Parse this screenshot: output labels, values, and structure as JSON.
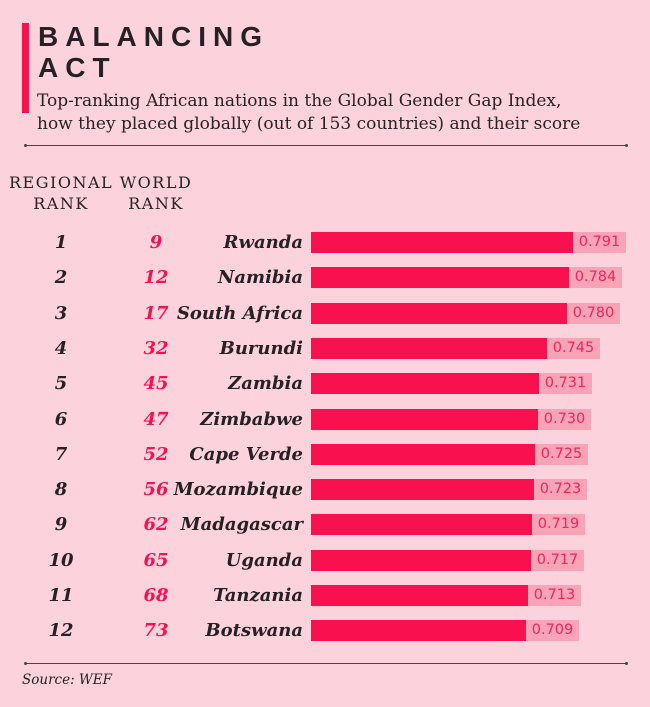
{
  "colors": {
    "background": "#fcd3dd",
    "crimson": "#f8104f",
    "bar_fill": "#f8104f",
    "bar_chip": "#f9a3b6",
    "value_text": "#f3255b",
    "dark_text": "#272125",
    "divider": "#4b4347"
  },
  "header": {
    "title": "BALANCING\nACT",
    "subtitle": "Top-ranking African nations in the Global Gender Gap Index,\nhow they placed globally (out of 153 countries) and their score"
  },
  "table": {
    "columns": [
      {
        "id": "regional_rank",
        "label": "REGIONAL\nRANK"
      },
      {
        "id": "world_rank",
        "label": "WORLD\nRANK"
      }
    ]
  },
  "chart_data": {
    "type": "bar",
    "orientation": "horizontal",
    "title": "BALANCING ACT",
    "subtitle": "Top-ranking African nations in the Global Gender Gap Index, how they placed globally (out of 153 countries) and their score",
    "xlim": [
      0.335,
      0.881
    ],
    "categories": [
      "Rwanda",
      "Namibia",
      "South Africa",
      "Burundi",
      "Zambia",
      "Zimbabwe",
      "Cape Verde",
      "Mozambique",
      "Madagascar",
      "Uganda",
      "Tanzania",
      "Botswana"
    ],
    "values": [
      0.791,
      0.784,
      0.78,
      0.745,
      0.731,
      0.73,
      0.725,
      0.723,
      0.719,
      0.717,
      0.713,
      0.709
    ],
    "rows": [
      {
        "regional_rank": "1",
        "world_rank": "9",
        "country": "Rwanda",
        "score": "0.791"
      },
      {
        "regional_rank": "2",
        "world_rank": "12",
        "country": "Namibia",
        "score": "0.784"
      },
      {
        "regional_rank": "3",
        "world_rank": "17",
        "country": "South Africa",
        "score": "0.780"
      },
      {
        "regional_rank": "4",
        "world_rank": "32",
        "country": "Burundi",
        "score": "0.745"
      },
      {
        "regional_rank": "5",
        "world_rank": "45",
        "country": "Zambia",
        "score": "0.731"
      },
      {
        "regional_rank": "6",
        "world_rank": "47",
        "country": "Zimbabwe",
        "score": "0.730"
      },
      {
        "regional_rank": "7",
        "world_rank": "52",
        "country": "Cape Verde",
        "score": "0.725"
      },
      {
        "regional_rank": "8",
        "world_rank": "56",
        "country": "Mozambique",
        "score": "0.723"
      },
      {
        "regional_rank": "9",
        "world_rank": "62",
        "country": "Madagascar",
        "score": "0.719"
      },
      {
        "regional_rank": "10",
        "world_rank": "65",
        "country": "Uganda",
        "score": "0.717"
      },
      {
        "regional_rank": "11",
        "world_rank": "68",
        "country": "Tanzania",
        "score": "0.713"
      },
      {
        "regional_rank": "12",
        "world_rank": "73",
        "country": "Botswana",
        "score": "0.709"
      }
    ]
  },
  "footer": {
    "source": "Source: WEF"
  }
}
